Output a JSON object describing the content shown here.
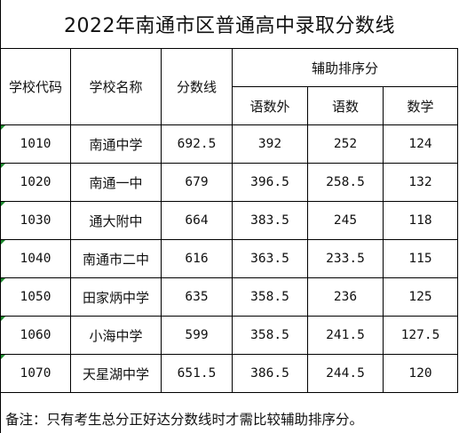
{
  "title": "2022年南通市区普通高中录取分数线",
  "headers": {
    "code": "学校代码",
    "name": "学校名称",
    "score": "分数线",
    "aux_group": "辅助排序分",
    "aux_cols": [
      "语数外",
      "语数",
      "数学"
    ]
  },
  "rows": [
    {
      "code": "1010",
      "name": "南通中学",
      "score": "692.5",
      "a": "392",
      "b": "252",
      "c": "124"
    },
    {
      "code": "1020",
      "name": "南通一中",
      "score": "679",
      "a": "396.5",
      "b": "258.5",
      "c": "132"
    },
    {
      "code": "1030",
      "name": "通大附中",
      "score": "664",
      "a": "383.5",
      "b": "245",
      "c": "118"
    },
    {
      "code": "1040",
      "name": "南通市二中",
      "score": "616",
      "a": "363.5",
      "b": "233.5",
      "c": "115"
    },
    {
      "code": "1050",
      "name": "田家炳中学",
      "score": "635",
      "a": "358.5",
      "b": "236",
      "c": "125"
    },
    {
      "code": "1060",
      "name": "小海中学",
      "score": "599",
      "a": "358.5",
      "b": "241.5",
      "c": "127.5"
    },
    {
      "code": "1070",
      "name": "天星湖中学",
      "score": "651.5",
      "a": "386.5",
      "b": "244.5",
      "c": "120"
    }
  ],
  "note": "备注：只有考生总分正好达分数线时才需比较辅助排序分。",
  "colors": {
    "cell_marker": "#1c8a2e",
    "border": "#000000"
  }
}
